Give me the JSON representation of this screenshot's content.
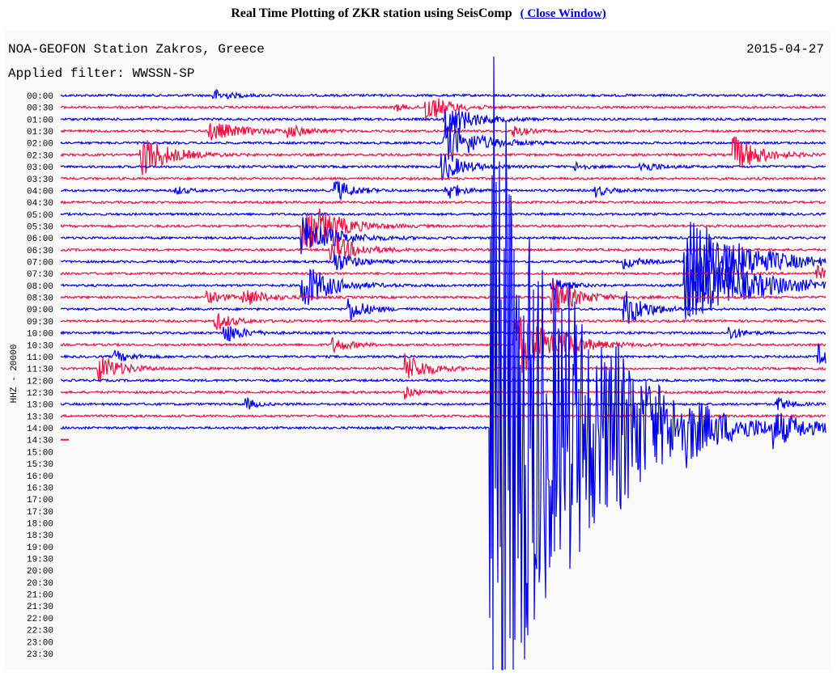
{
  "header": {
    "title": "Real Time Plotting of ZKR station using SeisComp",
    "link": "( Close Window)"
  },
  "plot": {
    "station": "NOA-GEOFON Station Zakros, Greece",
    "date": "2015-04-27",
    "filter": "Applied filter: WWSSN-SP",
    "channel": "HHZ - 20000",
    "times": [
      "00:00",
      "00:30",
      "01:00",
      "01:30",
      "02:00",
      "02:30",
      "03:00",
      "03:30",
      "04:00",
      "04:30",
      "05:00",
      "05:30",
      "06:00",
      "06:30",
      "07:00",
      "07:30",
      "08:00",
      "08:30",
      "09:00",
      "09:30",
      "10:00",
      "10:30",
      "11:00",
      "11:30",
      "12:00",
      "12:30",
      "13:00",
      "13:30",
      "14:00",
      "14:30",
      "15:00",
      "15:30",
      "16:00",
      "16:30",
      "17:00",
      "17:30",
      "18:00",
      "18:30",
      "19:00",
      "19:30",
      "20:00",
      "20:30",
      "21:00",
      "21:30",
      "22:00",
      "22:30",
      "23:00",
      "23:30"
    ]
  }
}
